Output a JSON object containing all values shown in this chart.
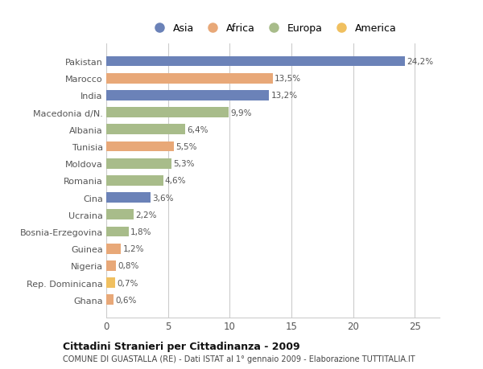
{
  "categories": [
    "Pakistan",
    "Marocco",
    "India",
    "Macedonia d/N.",
    "Albania",
    "Tunisia",
    "Moldova",
    "Romania",
    "Cina",
    "Ucraina",
    "Bosnia-Erzegovina",
    "Guinea",
    "Nigeria",
    "Rep. Dominicana",
    "Ghana"
  ],
  "values": [
    24.2,
    13.5,
    13.2,
    9.9,
    6.4,
    5.5,
    5.3,
    4.6,
    3.6,
    2.2,
    1.8,
    1.2,
    0.8,
    0.7,
    0.6
  ],
  "labels": [
    "24,2%",
    "13,5%",
    "13,2%",
    "9,9%",
    "6,4%",
    "5,5%",
    "5,3%",
    "4,6%",
    "3,6%",
    "2,2%",
    "1,8%",
    "1,2%",
    "0,8%",
    "0,7%",
    "0,6%"
  ],
  "continents": [
    "Asia",
    "Africa",
    "Asia",
    "Europa",
    "Europa",
    "Africa",
    "Europa",
    "Europa",
    "Asia",
    "Europa",
    "Europa",
    "Africa",
    "Africa",
    "America",
    "Africa"
  ],
  "continent_colors": {
    "Asia": "#6b82b8",
    "Africa": "#e8a878",
    "Europa": "#a8bc8a",
    "America": "#f0c060"
  },
  "legend_order": [
    "Asia",
    "Africa",
    "Europa",
    "America"
  ],
  "legend_colors": [
    "#6b82b8",
    "#e8a878",
    "#a8bc8a",
    "#f0c060"
  ],
  "title": "Cittadini Stranieri per Cittadinanza - 2009",
  "subtitle": "COMUNE DI GUASTALLA (RE) - Dati ISTAT al 1° gennaio 2009 - Elaborazione TUTTITALIA.IT",
  "xlim": [
    0,
    27
  ],
  "xticks": [
    0,
    5,
    10,
    15,
    20,
    25
  ],
  "bg_color": "#ffffff",
  "grid_color": "#cccccc",
  "bar_height": 0.6
}
